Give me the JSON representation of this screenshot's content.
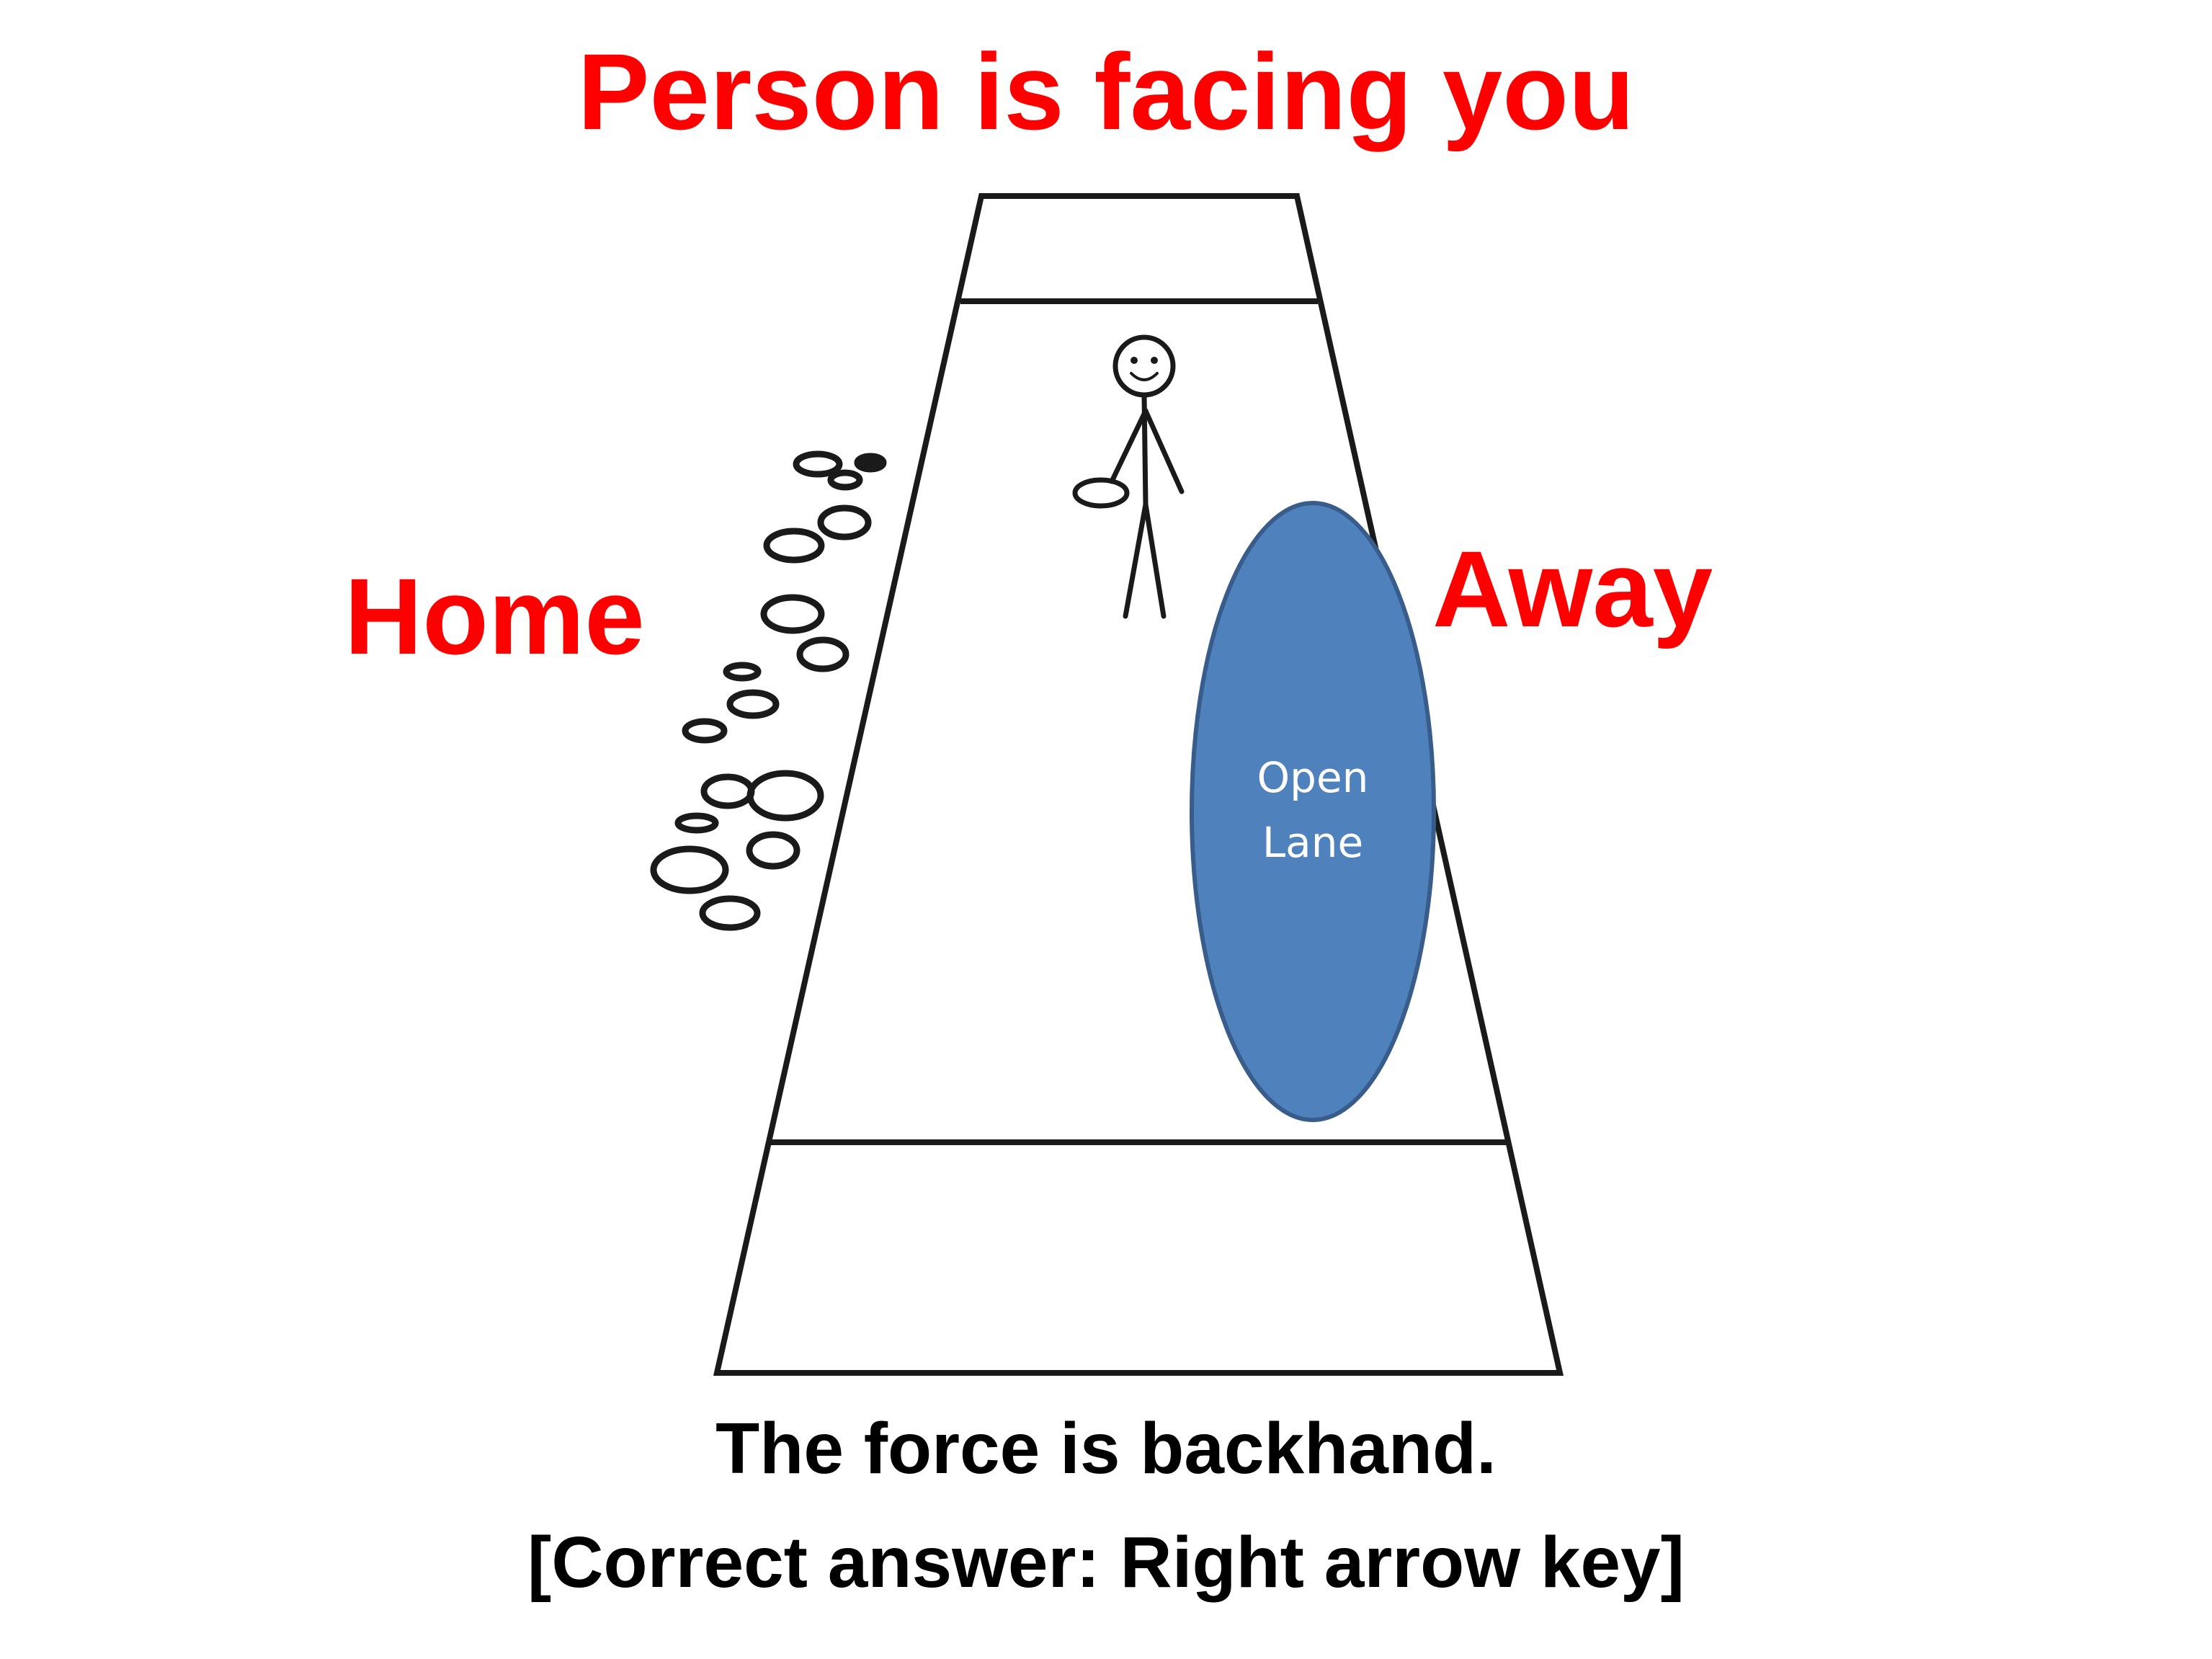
{
  "title": "Person is facing you",
  "labels": {
    "home": "Home",
    "away": "Away",
    "open_lane_line1": "Open",
    "open_lane_line2": "Lane"
  },
  "caption": {
    "line1": "The force is backhand.",
    "line2": "[Correct answer: Right arrow key]"
  },
  "colors": {
    "title": "#ff0000",
    "side_labels": "#ff0000",
    "caption": "#000000",
    "field_lines": "#1a1a1a",
    "open_lane_fill": "#4f81bd",
    "open_lane_stroke": "#385d8a",
    "open_lane_text": "#ffffff"
  },
  "icons": {
    "player": "stick-figure-icon",
    "disc": "disc-icon",
    "crowd": "sideline-crowd-icon"
  }
}
